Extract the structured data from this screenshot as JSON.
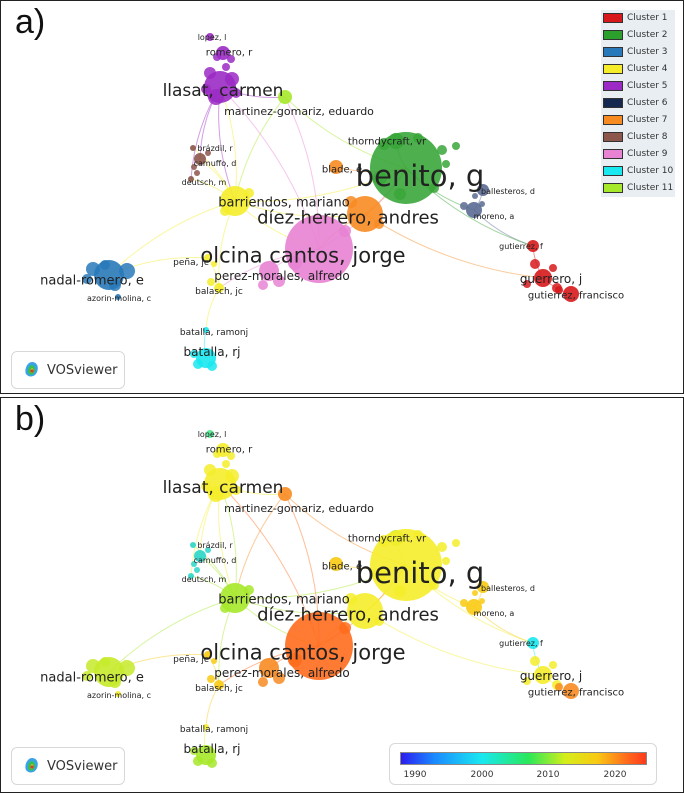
{
  "panel_a": {
    "letter": "a)",
    "legend": [
      {
        "label": "Cluster 1",
        "color": "#d7191c"
      },
      {
        "label": "Cluster 2",
        "color": "#2ca02c"
      },
      {
        "label": "Cluster 3",
        "color": "#2879b9"
      },
      {
        "label": "Cluster 4",
        "color": "#f5ed2a"
      },
      {
        "label": "Cluster 5",
        "color": "#9b2bc4"
      },
      {
        "label": "Cluster 6",
        "color": "#142850"
      },
      {
        "label": "Cluster 7",
        "color": "#f78b22"
      },
      {
        "label": "Cluster 8",
        "color": "#8c564b"
      },
      {
        "label": "Cluster 9",
        "color": "#e882d3"
      },
      {
        "label": "Cluster 10",
        "color": "#19e8f0"
      },
      {
        "label": "Cluster 11",
        "color": "#a6e82a"
      }
    ],
    "logo_text": "VOSviewer"
  },
  "panel_b": {
    "letter": "b)",
    "logo_text": "VOSviewer",
    "colorbar": {
      "ticks": [
        "1990",
        "2000",
        "2010",
        "2020"
      ],
      "range": [
        1987,
        2024
      ]
    }
  },
  "network": {
    "nodes": [
      {
        "label": "lopez, l"
      },
      {
        "label": "romero, r"
      },
      {
        "label": "llasat, carmen"
      },
      {
        "label": "martinez-gomariz, eduardo"
      },
      {
        "label": "thorndycraft, vr"
      },
      {
        "label": "brázdil, r"
      },
      {
        "label": "camuffo, d"
      },
      {
        "label": "deutsch, m"
      },
      {
        "label": "blade, e"
      },
      {
        "label": "benito, g"
      },
      {
        "label": "ballesteros, d"
      },
      {
        "label": "barriendos, mariano"
      },
      {
        "label": "díez-herrero, andres"
      },
      {
        "label": "moreno, a"
      },
      {
        "label": "olcina cantos, jorge"
      },
      {
        "label": "gutierrez, f"
      },
      {
        "label": "nadal-romero, e"
      },
      {
        "label": "peña, jc"
      },
      {
        "label": "perez-morales, alfredo"
      },
      {
        "label": "guerrero, j"
      },
      {
        "label": "azorin-molina, c"
      },
      {
        "label": "balasch, jc"
      },
      {
        "label": "gutierrez, francisco"
      },
      {
        "label": "batalla, ramonj"
      },
      {
        "label": "batalla, rj"
      }
    ]
  }
}
